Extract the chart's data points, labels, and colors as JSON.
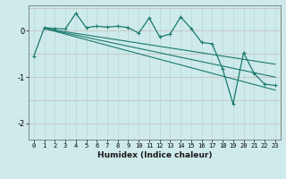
{
  "xlabel": "Humidex (Indice chaleur)",
  "ylabel": "",
  "background_color": "#ceeaea",
  "line_color": "#1a7a6e",
  "grid_color_minor": "#b8d8d8",
  "grid_color_major": "#c8b8b8",
  "xlim": [
    -0.5,
    23.5
  ],
  "ylim": [
    -2.35,
    0.55
  ],
  "yticks": [
    0,
    -1,
    -2
  ],
  "xticks": [
    0,
    1,
    2,
    3,
    4,
    5,
    6,
    7,
    8,
    9,
    10,
    11,
    12,
    13,
    14,
    15,
    16,
    17,
    18,
    19,
    20,
    21,
    22,
    23
  ],
  "series_main": {
    "x": [
      0,
      1,
      2,
      3,
      4,
      5,
      6,
      7,
      8,
      9,
      10,
      11,
      12,
      13,
      14,
      15,
      16,
      17,
      18,
      19,
      20,
      21,
      22,
      23
    ],
    "y": [
      -0.55,
      0.07,
      0.05,
      0.04,
      0.38,
      0.07,
      0.1,
      0.08,
      0.1,
      0.07,
      -0.05,
      0.28,
      -0.13,
      -0.07,
      0.3,
      0.05,
      -0.25,
      -0.28,
      -0.82,
      -1.58,
      -0.47,
      -0.92,
      -1.15,
      -1.18
    ]
  },
  "trend_lines": [
    {
      "x": [
        1,
        23
      ],
      "y": [
        0.05,
        -0.72
      ]
    },
    {
      "x": [
        1,
        23
      ],
      "y": [
        0.05,
        -1.0
      ]
    },
    {
      "x": [
        1,
        23
      ],
      "y": [
        0.05,
        -1.28
      ]
    }
  ]
}
